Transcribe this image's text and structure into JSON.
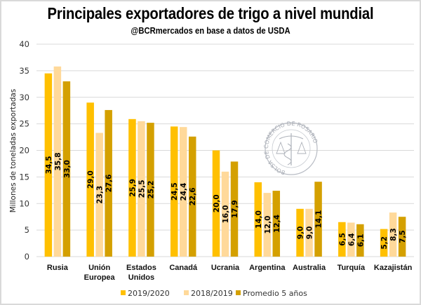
{
  "chart_data": {
    "type": "bar",
    "title": "Principales exportadores de trigo a nivel mundial",
    "subtitle": "@BCRmercados en base a datos de USDA",
    "xlabel": "",
    "ylabel": "Millones de toneladas exportadas",
    "ylim": [
      0,
      40
    ],
    "yticks": [
      0,
      5,
      10,
      15,
      20,
      25,
      30,
      35,
      40
    ],
    "grid": true,
    "legend_position": "bottom",
    "categories": [
      [
        "Rusia"
      ],
      [
        "Unión",
        "Europea"
      ],
      [
        "Estados",
        "Unidos"
      ],
      [
        "Canadá"
      ],
      [
        "Ucrania"
      ],
      [
        "Argentina"
      ],
      [
        "Australia"
      ],
      [
        "Turquía"
      ],
      [
        "Kazajistán"
      ]
    ],
    "series": [
      {
        "name": "2019/2020",
        "color": "#FFC000",
        "values": [
          34.5,
          29.0,
          25.9,
          24.5,
          20.0,
          14.0,
          9.0,
          6.5,
          5.2
        ],
        "labels": [
          "34,5",
          "29,0",
          "25,9",
          "24,5",
          "20,0",
          "14,0",
          "9,0",
          "6,5",
          "5,2"
        ]
      },
      {
        "name": "2018/2019",
        "color": "#FFD99A",
        "values": [
          35.8,
          23.3,
          25.5,
          24.4,
          16.0,
          12.0,
          9.0,
          6.4,
          8.3
        ],
        "labels": [
          "35,8",
          "23,3",
          "25,5",
          "24,4",
          "16,0",
          "12,0",
          "9,0",
          "6,4",
          "8,3"
        ]
      },
      {
        "name": "Promedio 5 años",
        "color": "#D4A000",
        "values": [
          33.0,
          27.6,
          25.2,
          22.6,
          17.9,
          12.4,
          14.1,
          6.1,
          7.5
        ],
        "labels": [
          "33,0",
          "27,6",
          "25,2",
          "22,6",
          "17,9",
          "12,4",
          "14,1",
          "6,1",
          "7,5"
        ]
      }
    ],
    "annotations": [
      "BOLSA DE COMERCIO DE ROSARIO"
    ]
  },
  "watermark": {
    "text": "BOLSA DE COMERCIO DE ROSARIO"
  }
}
